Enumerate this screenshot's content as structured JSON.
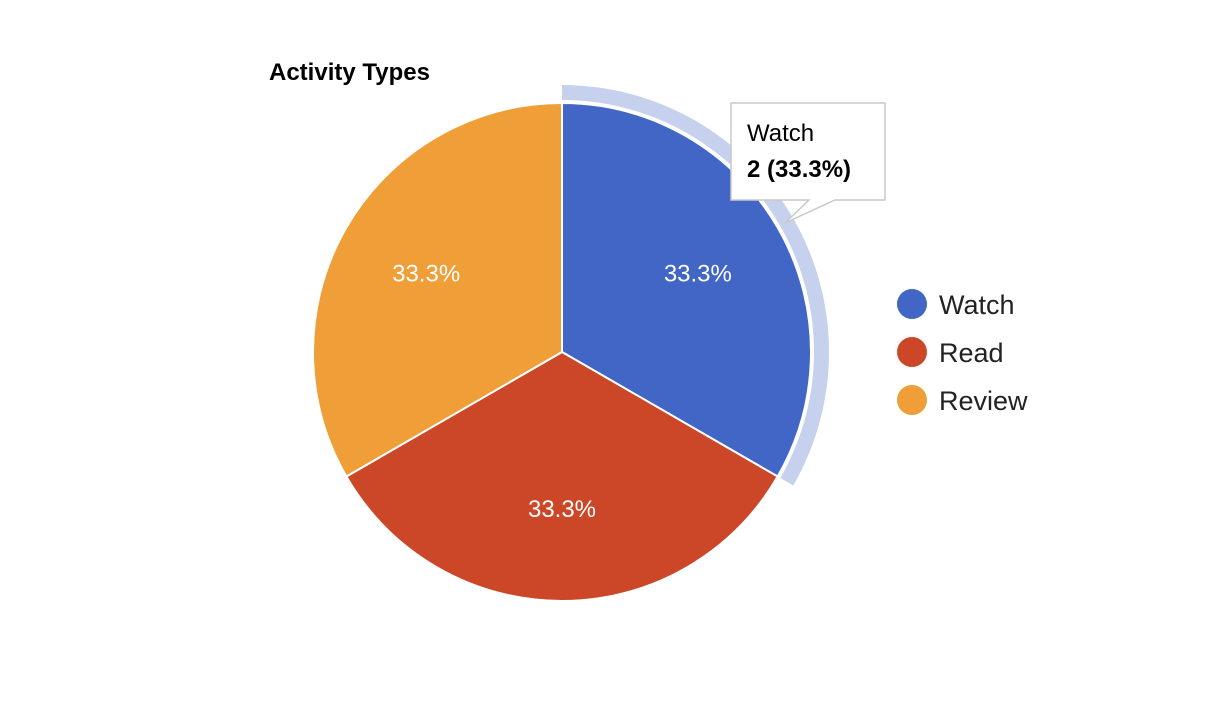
{
  "chart_data": {
    "type": "pie",
    "title": "Activity Types",
    "categories": [
      "Watch",
      "Read",
      "Review"
    ],
    "values": [
      2,
      2,
      2
    ],
    "slice_labels": [
      "33.3%",
      "33.3%",
      "33.3%"
    ],
    "colors": [
      "#4266c5",
      "#cb4728",
      "#ef9e38"
    ],
    "highlight_color": "#c6d1ee",
    "legend": {
      "position": "right",
      "entries": [
        "Watch",
        "Read",
        "Review"
      ]
    },
    "tooltip": {
      "category": "Watch",
      "name": "Watch",
      "value_text": "2 (33.3%)"
    }
  }
}
